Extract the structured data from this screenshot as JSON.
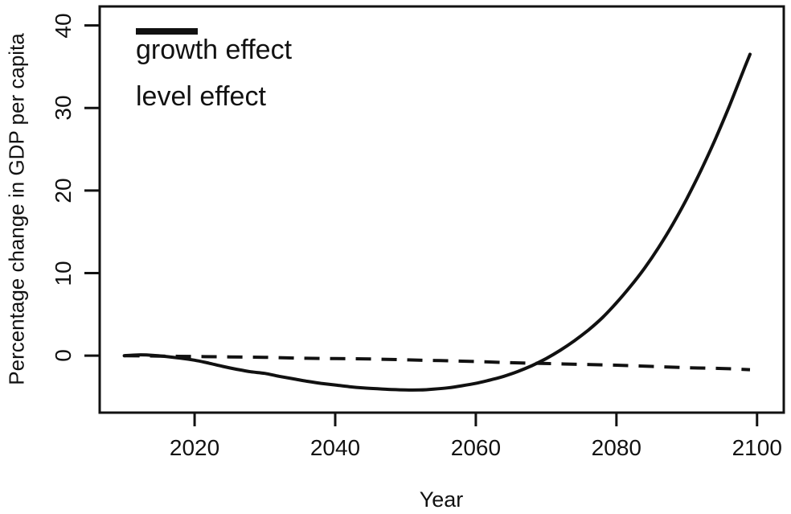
{
  "figure": {
    "background_color": "#ffffff",
    "line_color": "#000000",
    "text_color": "#111111"
  },
  "chart_data": {
    "type": "line",
    "title": "",
    "xlabel": "Year",
    "ylabel": "Percentage change in GDP per capita",
    "xlim": [
      2006.5,
      2103.8
    ],
    "ylim": [
      -6.9,
      42.3
    ],
    "x_ticks": [
      2020,
      2040,
      2060,
      2080,
      2100
    ],
    "y_ticks": [
      0,
      10,
      20,
      30,
      40
    ],
    "grid": false,
    "legend_position": "top-left-inside",
    "series": [
      {
        "name": "growth effect",
        "style": "solid",
        "color": "#000000",
        "x": [
          2010,
          2012,
          2014,
          2016,
          2018,
          2020,
          2022,
          2024,
          2026,
          2028,
          2030,
          2032,
          2034,
          2036,
          2038,
          2040,
          2042,
          2044,
          2046,
          2048,
          2050,
          2052,
          2054,
          2056,
          2058,
          2060,
          2062,
          2064,
          2066,
          2068,
          2070,
          2072,
          2074,
          2076,
          2078,
          2080,
          2082,
          2084,
          2086,
          2088,
          2090,
          2092,
          2094,
          2096,
          2098,
          2099
        ],
        "y": [
          0.0,
          0.1,
          0.05,
          -0.1,
          -0.3,
          -0.55,
          -0.9,
          -1.3,
          -1.65,
          -1.95,
          -2.15,
          -2.5,
          -2.8,
          -3.1,
          -3.35,
          -3.55,
          -3.75,
          -3.9,
          -4.0,
          -4.1,
          -4.15,
          -4.15,
          -4.05,
          -3.9,
          -3.65,
          -3.35,
          -2.95,
          -2.5,
          -1.9,
          -1.2,
          -0.35,
          0.65,
          1.8,
          3.1,
          4.6,
          6.4,
          8.4,
          10.6,
          13.1,
          15.9,
          19.0,
          22.4,
          26.1,
          30.1,
          34.4,
          36.5
        ]
      },
      {
        "name": "level effect",
        "style": "dashed",
        "color": "#000000",
        "x": [
          2010,
          2015,
          2020,
          2025,
          2030,
          2035,
          2040,
          2045,
          2050,
          2055,
          2060,
          2065,
          2070,
          2075,
          2080,
          2085,
          2090,
          2095,
          2099
        ],
        "y": [
          0.0,
          -0.05,
          -0.1,
          -0.15,
          -0.2,
          -0.3,
          -0.35,
          -0.4,
          -0.5,
          -0.6,
          -0.7,
          -0.85,
          -0.95,
          -1.05,
          -1.15,
          -1.3,
          -1.45,
          -1.55,
          -1.7
        ]
      }
    ]
  }
}
